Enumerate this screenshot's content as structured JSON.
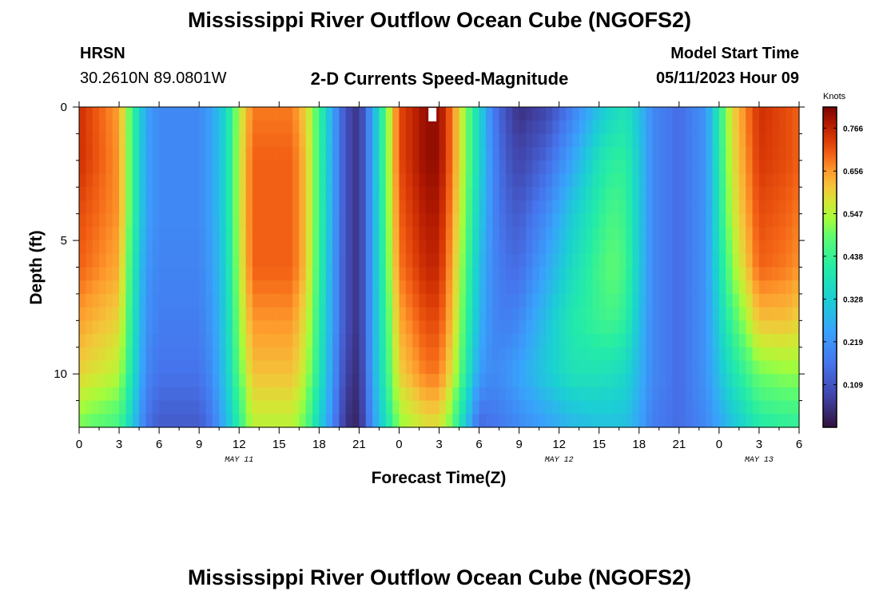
{
  "page": {
    "title": "Mississippi River Outflow Ocean Cube (NGOFS2)",
    "station_id": "HRSN",
    "station_coords": "30.2610N  89.0801W",
    "plot_title": "2-D Currents Speed-Magnitude",
    "model_start_label": "Model Start Time",
    "model_start_value": "05/11/2023 Hour 09",
    "bottom_title": "Mississippi River Outflow Ocean Cube (NGOFS2)"
  },
  "chart_data": {
    "type": "heatmap",
    "xlabel": "Forecast Time(Z)",
    "ylabel": "Depth (ft)",
    "x_range_hours": [
      0,
      54
    ],
    "y_range_ft": [
      0,
      12
    ],
    "x_tick_labels": [
      "0",
      "3",
      "6",
      "9",
      "12",
      "15",
      "18",
      "21",
      "0",
      "3",
      "6",
      "9",
      "12",
      "15",
      "18",
      "21",
      "0",
      "3",
      "6"
    ],
    "x_tick_hours": [
      0,
      3,
      6,
      9,
      12,
      15,
      18,
      21,
      24,
      27,
      30,
      33,
      36,
      39,
      42,
      45,
      48,
      51,
      54
    ],
    "y_tick_labels": [
      "0",
      "5",
      "10"
    ],
    "y_tick_values": [
      0,
      5,
      10
    ],
    "date_labels": [
      {
        "text": "MAY 11",
        "hour": 12
      },
      {
        "text": "MAY 12",
        "hour": 36
      },
      {
        "text": "MAY 13",
        "hour": 51
      }
    ],
    "colorbar": {
      "unit": "Knots",
      "min": 0.0,
      "max": 0.82,
      "tick_labels": [
        "0.766",
        "0.656",
        "0.547",
        "0.438",
        "0.328",
        "0.219",
        "0.109"
      ],
      "tick_values": [
        0.766,
        0.656,
        0.547,
        0.438,
        0.328,
        0.219,
        0.109
      ]
    },
    "time_hours": [
      0,
      3,
      4,
      5,
      6,
      9,
      10,
      11,
      12,
      13,
      16,
      17,
      18,
      19,
      20,
      21,
      22,
      24,
      26,
      27,
      28,
      30,
      31,
      32,
      33,
      35,
      37,
      39,
      40,
      41,
      42,
      43,
      45,
      47,
      49,
      51,
      53,
      54
    ],
    "depth_rows_ft": [
      0,
      2,
      4,
      6,
      8,
      10,
      12
    ],
    "speed_values": [
      [
        0.75,
        0.65,
        0.45,
        0.25,
        0.2,
        0.2,
        0.25,
        0.35,
        0.55,
        0.68,
        0.68,
        0.6,
        0.45,
        0.25,
        0.1,
        0.05,
        0.25,
        0.72,
        0.8,
        0.8,
        0.68,
        0.35,
        0.18,
        0.1,
        0.05,
        0.08,
        0.18,
        0.3,
        0.35,
        0.38,
        0.3,
        0.2,
        0.15,
        0.22,
        0.6,
        0.75,
        0.72,
        0.7
      ],
      [
        0.75,
        0.66,
        0.45,
        0.25,
        0.2,
        0.2,
        0.25,
        0.35,
        0.56,
        0.7,
        0.7,
        0.62,
        0.45,
        0.25,
        0.1,
        0.05,
        0.25,
        0.72,
        0.8,
        0.8,
        0.68,
        0.35,
        0.2,
        0.12,
        0.08,
        0.14,
        0.25,
        0.38,
        0.42,
        0.42,
        0.32,
        0.2,
        0.15,
        0.22,
        0.58,
        0.74,
        0.72,
        0.7
      ],
      [
        0.72,
        0.66,
        0.45,
        0.25,
        0.2,
        0.2,
        0.25,
        0.35,
        0.56,
        0.7,
        0.7,
        0.62,
        0.45,
        0.25,
        0.1,
        0.05,
        0.25,
        0.7,
        0.78,
        0.78,
        0.66,
        0.33,
        0.2,
        0.14,
        0.12,
        0.2,
        0.32,
        0.42,
        0.46,
        0.44,
        0.32,
        0.2,
        0.15,
        0.22,
        0.56,
        0.72,
        0.7,
        0.68
      ],
      [
        0.7,
        0.64,
        0.42,
        0.23,
        0.19,
        0.19,
        0.24,
        0.34,
        0.55,
        0.7,
        0.7,
        0.62,
        0.44,
        0.24,
        0.1,
        0.05,
        0.25,
        0.68,
        0.76,
        0.76,
        0.64,
        0.3,
        0.2,
        0.16,
        0.15,
        0.25,
        0.36,
        0.45,
        0.49,
        0.45,
        0.32,
        0.2,
        0.15,
        0.22,
        0.52,
        0.7,
        0.68,
        0.66
      ],
      [
        0.65,
        0.6,
        0.4,
        0.22,
        0.18,
        0.18,
        0.23,
        0.33,
        0.52,
        0.66,
        0.66,
        0.58,
        0.42,
        0.24,
        0.1,
        0.05,
        0.25,
        0.64,
        0.72,
        0.72,
        0.62,
        0.28,
        0.2,
        0.18,
        0.2,
        0.3,
        0.4,
        0.44,
        0.45,
        0.42,
        0.3,
        0.2,
        0.15,
        0.22,
        0.45,
        0.62,
        0.62,
        0.6
      ],
      [
        0.6,
        0.55,
        0.38,
        0.2,
        0.16,
        0.16,
        0.21,
        0.32,
        0.48,
        0.62,
        0.62,
        0.55,
        0.4,
        0.23,
        0.08,
        0.04,
        0.25,
        0.6,
        0.68,
        0.68,
        0.58,
        0.24,
        0.2,
        0.22,
        0.25,
        0.32,
        0.38,
        0.38,
        0.37,
        0.35,
        0.28,
        0.2,
        0.15,
        0.22,
        0.38,
        0.5,
        0.52,
        0.52
      ],
      [
        0.5,
        0.45,
        0.32,
        0.16,
        0.12,
        0.12,
        0.17,
        0.28,
        0.42,
        0.55,
        0.55,
        0.48,
        0.34,
        0.2,
        0.05,
        0.03,
        0.22,
        0.52,
        0.58,
        0.58,
        0.48,
        0.14,
        0.16,
        0.18,
        0.2,
        0.24,
        0.28,
        0.3,
        0.3,
        0.3,
        0.25,
        0.18,
        0.15,
        0.2,
        0.3,
        0.4,
        0.42,
        0.42
      ]
    ],
    "marker": {
      "hour": 26.5,
      "depth_ft": 0.25,
      "color": "#ffffff"
    }
  }
}
